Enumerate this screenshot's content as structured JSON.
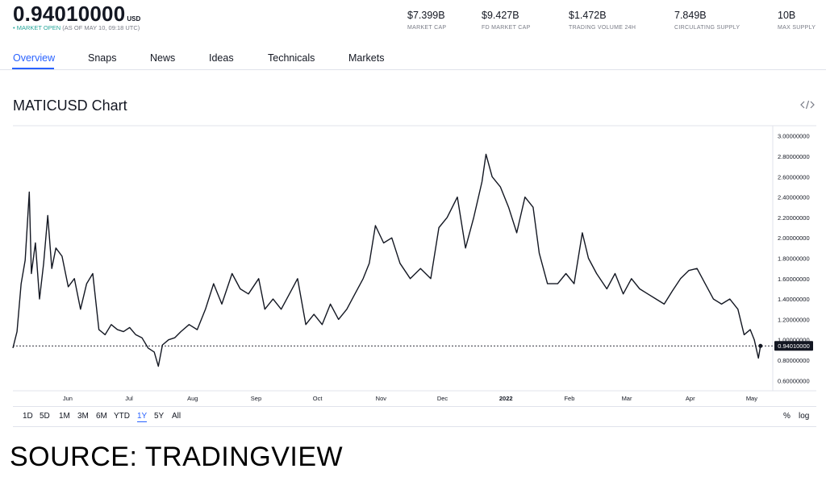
{
  "header": {
    "price": "0.94010000",
    "currency": "USD",
    "status_dot": "•",
    "status_open": "MARKET OPEN",
    "status_time": "(AS OF MAY 10, 09:18 UTC)"
  },
  "stats": [
    {
      "value": "$7.399B",
      "label": "MARKET CAP"
    },
    {
      "value": "$9.427B",
      "label": "FD MARKET CAP"
    },
    {
      "value": "$1.472B",
      "label": "TRADING VOLUME 24H"
    },
    {
      "value": "7.849B",
      "label": "CIRCULATING SUPPLY"
    },
    {
      "value": "10B",
      "label": "MAX SUPPLY"
    }
  ],
  "tabs": [
    "Overview",
    "Snaps",
    "News",
    "Ideas",
    "Technicals",
    "Markets"
  ],
  "chart_title": "MATICUSD Chart",
  "embed_icon": "code-icon",
  "ranges": [
    "1D",
    "5D",
    "1M",
    "3M",
    "6M",
    "YTD",
    "1Y",
    "5Y",
    "All"
  ],
  "active_range": "1Y",
  "scale_options": [
    "%",
    "log"
  ],
  "source": "SOURCE: TRADINGVIEW",
  "colors": {
    "line": "#131722",
    "accent": "#2962ff",
    "open": "#26a69a",
    "muted": "#787b86"
  },
  "chart_data": {
    "type": "line",
    "title": "MATICUSD Chart",
    "xlabel": "",
    "ylabel": "",
    "ylim": [
      0.5,
      3.1
    ],
    "x_tick_labels": [
      "Jun",
      "Jul",
      "Aug",
      "Sep",
      "Oct",
      "Nov",
      "Dec",
      "2022",
      "Feb",
      "Mar",
      "Apr",
      "May"
    ],
    "y_tick_labels": [
      "0.60000000",
      "0.80000000",
      "1.00000000",
      "1.20000000",
      "1.40000000",
      "1.60000000",
      "1.80000000",
      "2.00000000",
      "2.20000000",
      "2.40000000",
      "2.60000000",
      "2.80000000",
      "3.00000000"
    ],
    "y_ticks": [
      0.6,
      0.8,
      1.0,
      1.2,
      1.4,
      1.6,
      1.8,
      2.0,
      2.2,
      2.4,
      2.6,
      2.8,
      3.0
    ],
    "last_value": 0.9401,
    "last_value_label": "0.94010000",
    "grid": false,
    "series": [
      {
        "x": [
          "2021-05-10",
          "2021-05-12",
          "2021-05-14",
          "2021-05-16",
          "2021-05-18",
          "2021-05-19",
          "2021-05-21",
          "2021-05-23",
          "2021-05-25",
          "2021-05-27",
          "2021-05-29",
          "2021-05-31",
          "2021-06-03",
          "2021-06-06",
          "2021-06-09",
          "2021-06-12",
          "2021-06-15",
          "2021-06-18",
          "2021-06-21",
          "2021-06-24",
          "2021-06-27",
          "2021-06-30",
          "2021-07-03",
          "2021-07-06",
          "2021-07-09",
          "2021-07-12",
          "2021-07-15",
          "2021-07-18",
          "2021-07-20",
          "2021-07-22",
          "2021-07-25",
          "2021-07-28",
          "2021-07-31",
          "2021-08-04",
          "2021-08-08",
          "2021-08-12",
          "2021-08-16",
          "2021-08-20",
          "2021-08-25",
          "2021-08-29",
          "2021-09-02",
          "2021-09-07",
          "2021-09-10",
          "2021-09-14",
          "2021-09-18",
          "2021-09-22",
          "2021-09-26",
          "2021-09-30",
          "2021-10-04",
          "2021-10-08",
          "2021-10-12",
          "2021-10-16",
          "2021-10-20",
          "2021-10-24",
          "2021-10-28",
          "2021-10-31",
          "2021-11-03",
          "2021-11-07",
          "2021-11-11",
          "2021-11-15",
          "2021-11-20",
          "2021-11-25",
          "2021-11-30",
          "2021-12-04",
          "2021-12-08",
          "2021-12-13",
          "2021-12-17",
          "2021-12-21",
          "2021-12-25",
          "2021-12-27",
          "2021-12-30",
          "2022-01-03",
          "2022-01-07",
          "2022-01-11",
          "2022-01-15",
          "2022-01-19",
          "2022-01-22",
          "2022-01-26",
          "2022-01-31",
          "2022-02-04",
          "2022-02-08",
          "2022-02-12",
          "2022-02-15",
          "2022-02-19",
          "2022-02-24",
          "2022-02-28",
          "2022-03-04",
          "2022-03-08",
          "2022-03-12",
          "2022-03-16",
          "2022-03-20",
          "2022-03-24",
          "2022-03-28",
          "2022-04-01",
          "2022-04-05",
          "2022-04-09",
          "2022-04-13",
          "2022-04-17",
          "2022-04-21",
          "2022-04-25",
          "2022-04-29",
          "2022-05-02",
          "2022-05-05",
          "2022-05-07",
          "2022-05-09",
          "2022-05-10"
        ],
        "y": [
          0.92,
          1.08,
          1.55,
          1.78,
          2.45,
          1.65,
          1.95,
          1.4,
          1.75,
          2.22,
          1.7,
          1.9,
          1.82,
          1.52,
          1.6,
          1.3,
          1.55,
          1.65,
          1.1,
          1.05,
          1.15,
          1.1,
          1.08,
          1.12,
          1.05,
          1.02,
          0.92,
          0.88,
          0.74,
          0.95,
          1.0,
          1.02,
          1.08,
          1.15,
          1.1,
          1.3,
          1.55,
          1.35,
          1.65,
          1.5,
          1.45,
          1.6,
          1.3,
          1.4,
          1.3,
          1.45,
          1.6,
          1.15,
          1.25,
          1.15,
          1.35,
          1.2,
          1.3,
          1.45,
          1.6,
          1.75,
          2.12,
          1.95,
          2.0,
          1.75,
          1.6,
          1.7,
          1.6,
          2.1,
          2.2,
          2.4,
          1.9,
          2.2,
          2.55,
          2.82,
          2.6,
          2.5,
          2.3,
          2.05,
          2.4,
          2.3,
          1.85,
          1.55,
          1.55,
          1.65,
          1.55,
          2.05,
          1.8,
          1.65,
          1.5,
          1.65,
          1.45,
          1.6,
          1.5,
          1.45,
          1.4,
          1.35,
          1.48,
          1.6,
          1.68,
          1.7,
          1.55,
          1.4,
          1.35,
          1.4,
          1.3,
          1.05,
          1.1,
          1.0,
          0.82,
          0.9401
        ]
      }
    ]
  }
}
